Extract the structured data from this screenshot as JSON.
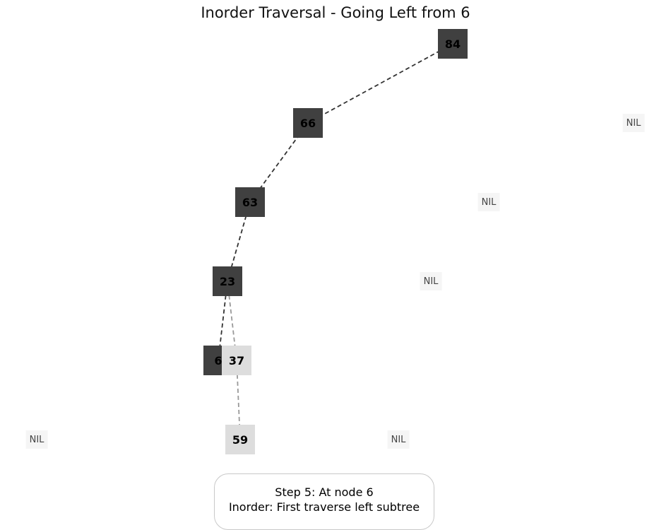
{
  "title": "Inorder Traversal - Going Left from 6",
  "nodes": [
    {
      "id": "84",
      "label": "84",
      "state": "visited"
    },
    {
      "id": "66",
      "label": "66",
      "state": "visited"
    },
    {
      "id": "63",
      "label": "63",
      "state": "visited"
    },
    {
      "id": "23",
      "label": "23",
      "state": "visited"
    },
    {
      "id": "6",
      "label": "6",
      "state": "current"
    },
    {
      "id": "37",
      "label": "37",
      "state": "unvisited"
    },
    {
      "id": "59",
      "label": "59",
      "state": "unvisited"
    }
  ],
  "edges": [
    {
      "from": "84",
      "to": "66",
      "state": "visited"
    },
    {
      "from": "66",
      "to": "63",
      "state": "visited"
    },
    {
      "from": "63",
      "to": "23",
      "state": "visited"
    },
    {
      "from": "23",
      "to": "6",
      "state": "visited"
    },
    {
      "from": "23",
      "to": "37",
      "state": "unvisited"
    },
    {
      "from": "37",
      "to": "59",
      "state": "unvisited"
    }
  ],
  "nil_label": "NIL",
  "status": {
    "line1": "Step 5: At node 6",
    "line2": "Inorder: First traverse left subtree"
  },
  "colors": {
    "visited_node": "#404040",
    "unvisited_node": "#dddddd",
    "visited_edge": "#333333",
    "unvisited_edge": "#999999"
  }
}
